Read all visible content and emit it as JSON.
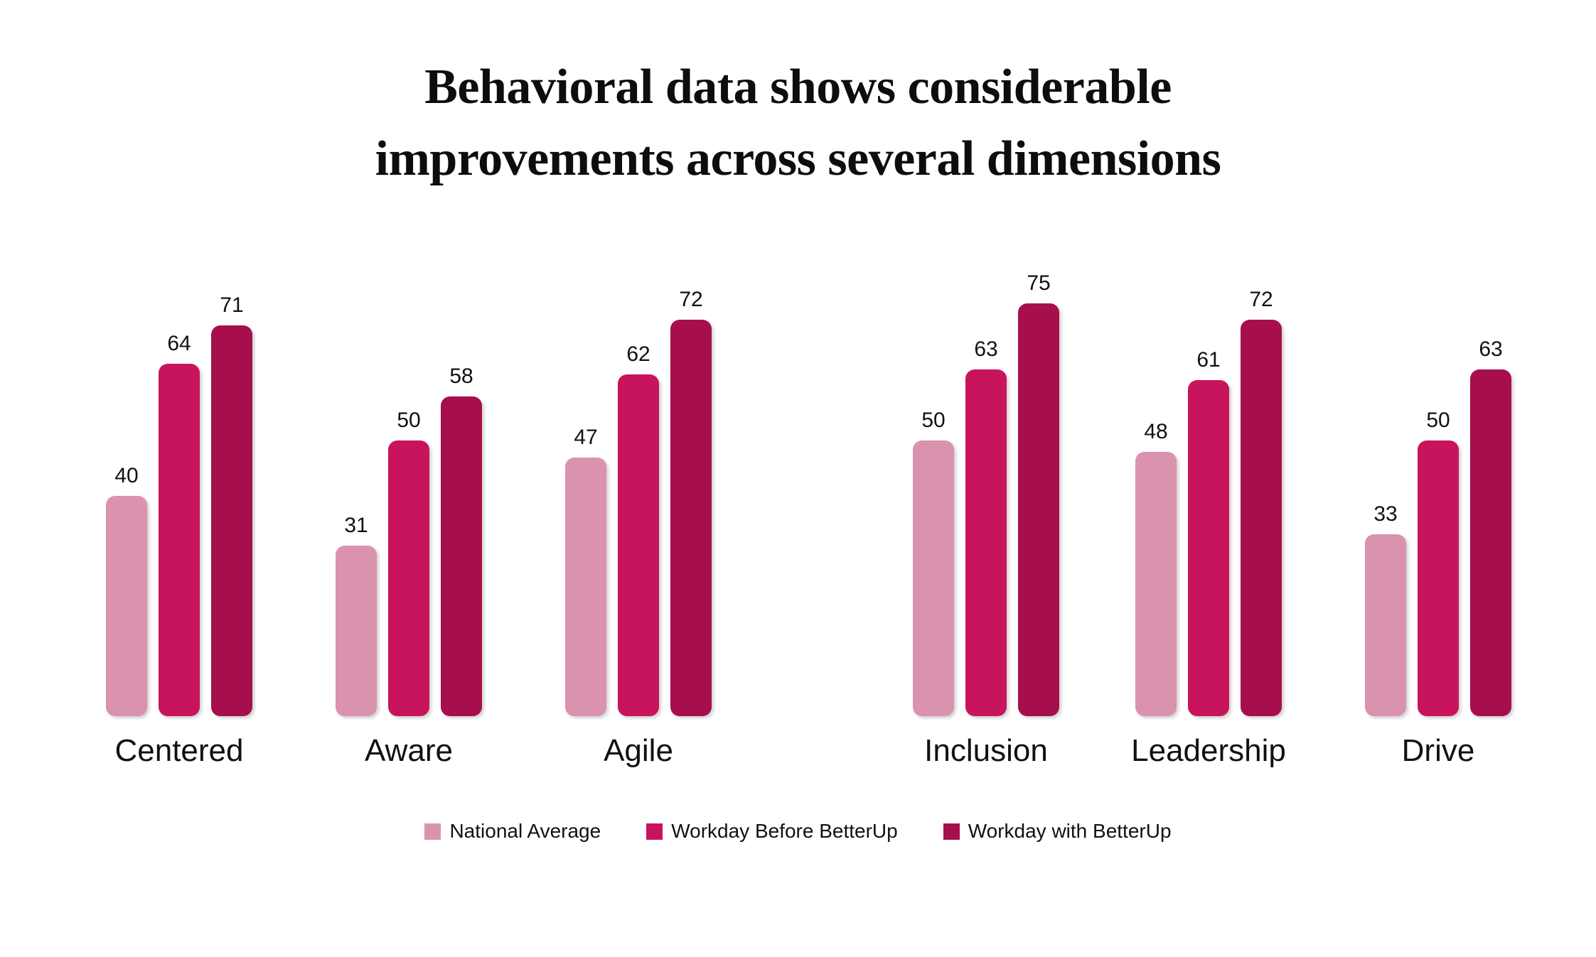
{
  "header": {
    "title_line1": "Behavioral data shows considerable",
    "title_line2": "improvements across several dimensions"
  },
  "chart_data": {
    "type": "bar",
    "title": "Behavioral data shows considerable improvements across several dimensions",
    "categories": [
      "Centered",
      "Aware",
      "Agile",
      "Inclusion",
      "Leadership",
      "Drive"
    ],
    "series": [
      {
        "name": "National Average",
        "color": "#DA92AE",
        "values": [
          40,
          31,
          47,
          50,
          48,
          33
        ]
      },
      {
        "name": "Workday Before BetterUp",
        "color": "#C8145C",
        "values": [
          64,
          50,
          62,
          63,
          61,
          50
        ]
      },
      {
        "name": "Workday with BetterUp",
        "color": "#A60F4C",
        "values": [
          71,
          58,
          72,
          75,
          72,
          63
        ]
      }
    ],
    "xlabel": "",
    "ylabel": "",
    "ylim": [
      0,
      80
    ],
    "grid": false,
    "axes_shown": false,
    "value_labels_shown": true,
    "legend_position": "bottom",
    "layout_hint_clusters": [
      [
        "Centered",
        "Aware",
        "Agile"
      ],
      [
        "Inclusion",
        "Leadership",
        "Drive"
      ]
    ]
  },
  "colors": {
    "background": "#FFFFFF",
    "text": "#111111",
    "series_light": "#DA92AE",
    "series_medium": "#C8145C",
    "series_dark": "#A60F4C"
  }
}
